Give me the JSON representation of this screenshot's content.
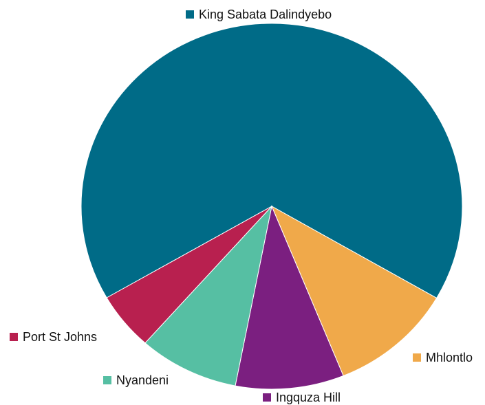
{
  "chart_data": {
    "type": "pie",
    "categories": [
      "King Sabata Dalindyebo",
      "Mhlontlo",
      "Ingquza Hill",
      "Nyandeni",
      "Port St Johns"
    ],
    "values": [
      66.7,
      10.5,
      9.2,
      8.5,
      5.1
    ],
    "colors": [
      "#006b87",
      "#f0a94a",
      "#7b1f80",
      "#56bfa3",
      "#b8204f"
    ]
  }
}
